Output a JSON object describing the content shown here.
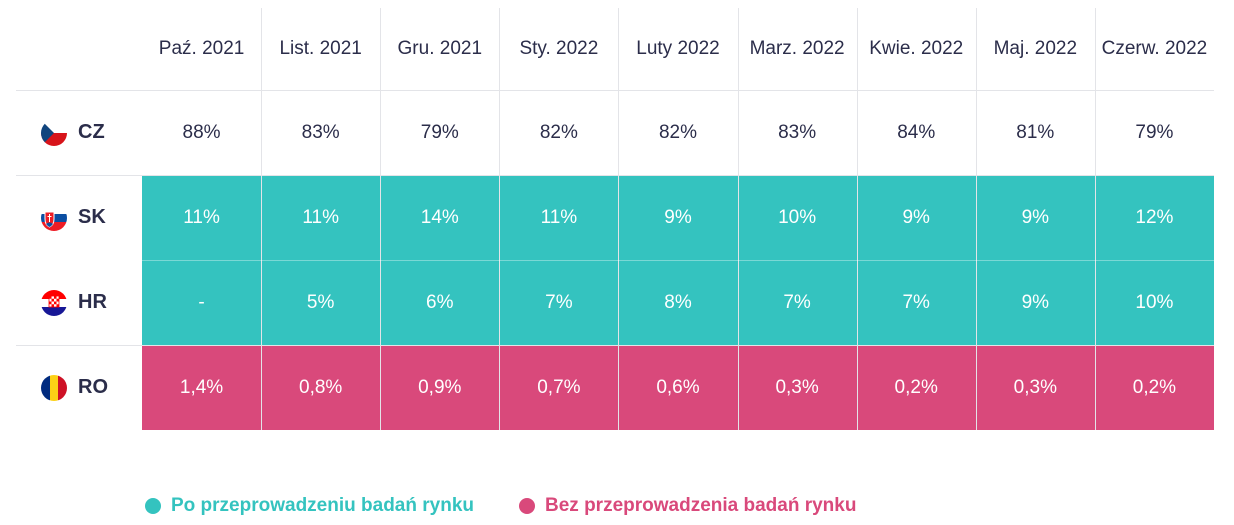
{
  "chart_data": {
    "type": "table",
    "columns": [
      "Paź. 2021",
      "List. 2021",
      "Gru. 2021",
      "Sty. 2022",
      "Luty 2022",
      "Marz. 2022",
      "Kwie. 2022",
      "Maj. 2022",
      "Czerw. 2022"
    ],
    "rows": [
      {
        "code": "CZ",
        "flag": "czech-flag-icon",
        "group": "none",
        "values": [
          "88%",
          "83%",
          "79%",
          "82%",
          "82%",
          "83%",
          "84%",
          "81%",
          "79%"
        ]
      },
      {
        "code": "SK",
        "flag": "slovak-flag-icon",
        "group": "researched",
        "values": [
          "11%",
          "11%",
          "14%",
          "11%",
          "9%",
          "10%",
          "9%",
          "9%",
          "12%"
        ]
      },
      {
        "code": "HR",
        "flag": "croatian-flag-icon",
        "group": "researched",
        "values": [
          "-",
          "5%",
          "6%",
          "7%",
          "8%",
          "7%",
          "7%",
          "9%",
          "10%"
        ]
      },
      {
        "code": "RO",
        "flag": "romanian-flag-icon",
        "group": "not_researched",
        "values": [
          "1,4%",
          "0,8%",
          "0,9%",
          "0,7%",
          "0,6%",
          "0,3%",
          "0,2%",
          "0,3%",
          "0,2%"
        ]
      }
    ],
    "legend": [
      {
        "label": "Po przeprowadzeniu badań rynku",
        "color": "#34c3bf"
      },
      {
        "label": "Bez przeprowadzenia badań rynku",
        "color": "#d9497b"
      }
    ],
    "legend_placement": "bottom"
  }
}
